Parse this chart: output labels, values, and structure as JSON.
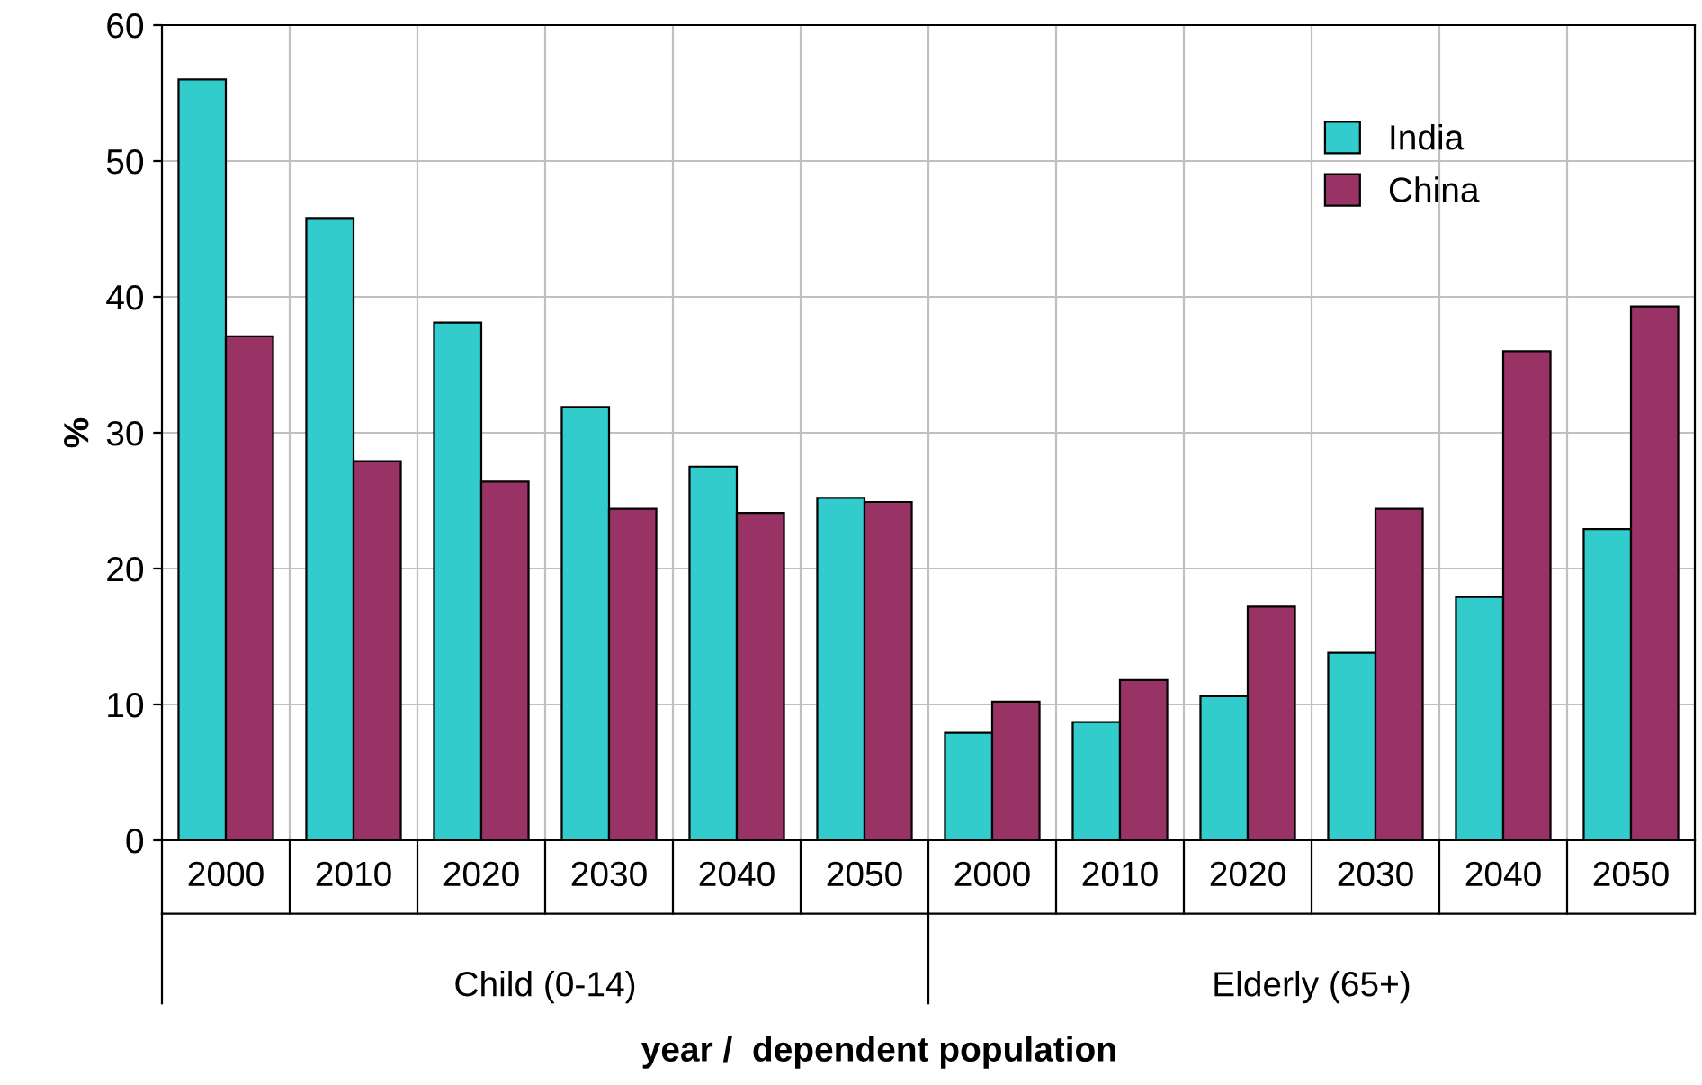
{
  "chart_data": {
    "type": "bar",
    "xlabel": "year /  dependent population",
    "ylabel": "%",
    "categories": [
      "2000",
      "2010",
      "2020",
      "2030",
      "2040",
      "2050",
      "2000",
      "2010",
      "2020",
      "2030",
      "2040",
      "2050"
    ],
    "series": [
      {
        "name": "India",
        "color": "#33cccc",
        "values": [
          56,
          45.8,
          38.1,
          31.9,
          27.5,
          25.2,
          7.9,
          8.7,
          10.6,
          13.8,
          17.9,
          22.9
        ]
      },
      {
        "name": "China",
        "color": "#993366",
        "values": [
          37.1,
          27.9,
          26.4,
          24.4,
          24.1,
          24.9,
          10.2,
          11.8,
          17.2,
          24.4,
          36.0,
          39.3
        ]
      }
    ],
    "annotations": [
      "Child (0-14)",
      "Elderly (65+)"
    ],
    "ylim": [
      0,
      60
    ],
    "yticks": [
      0,
      10,
      20,
      30,
      40,
      50,
      60
    ],
    "grid": true,
    "legend": "top right"
  }
}
